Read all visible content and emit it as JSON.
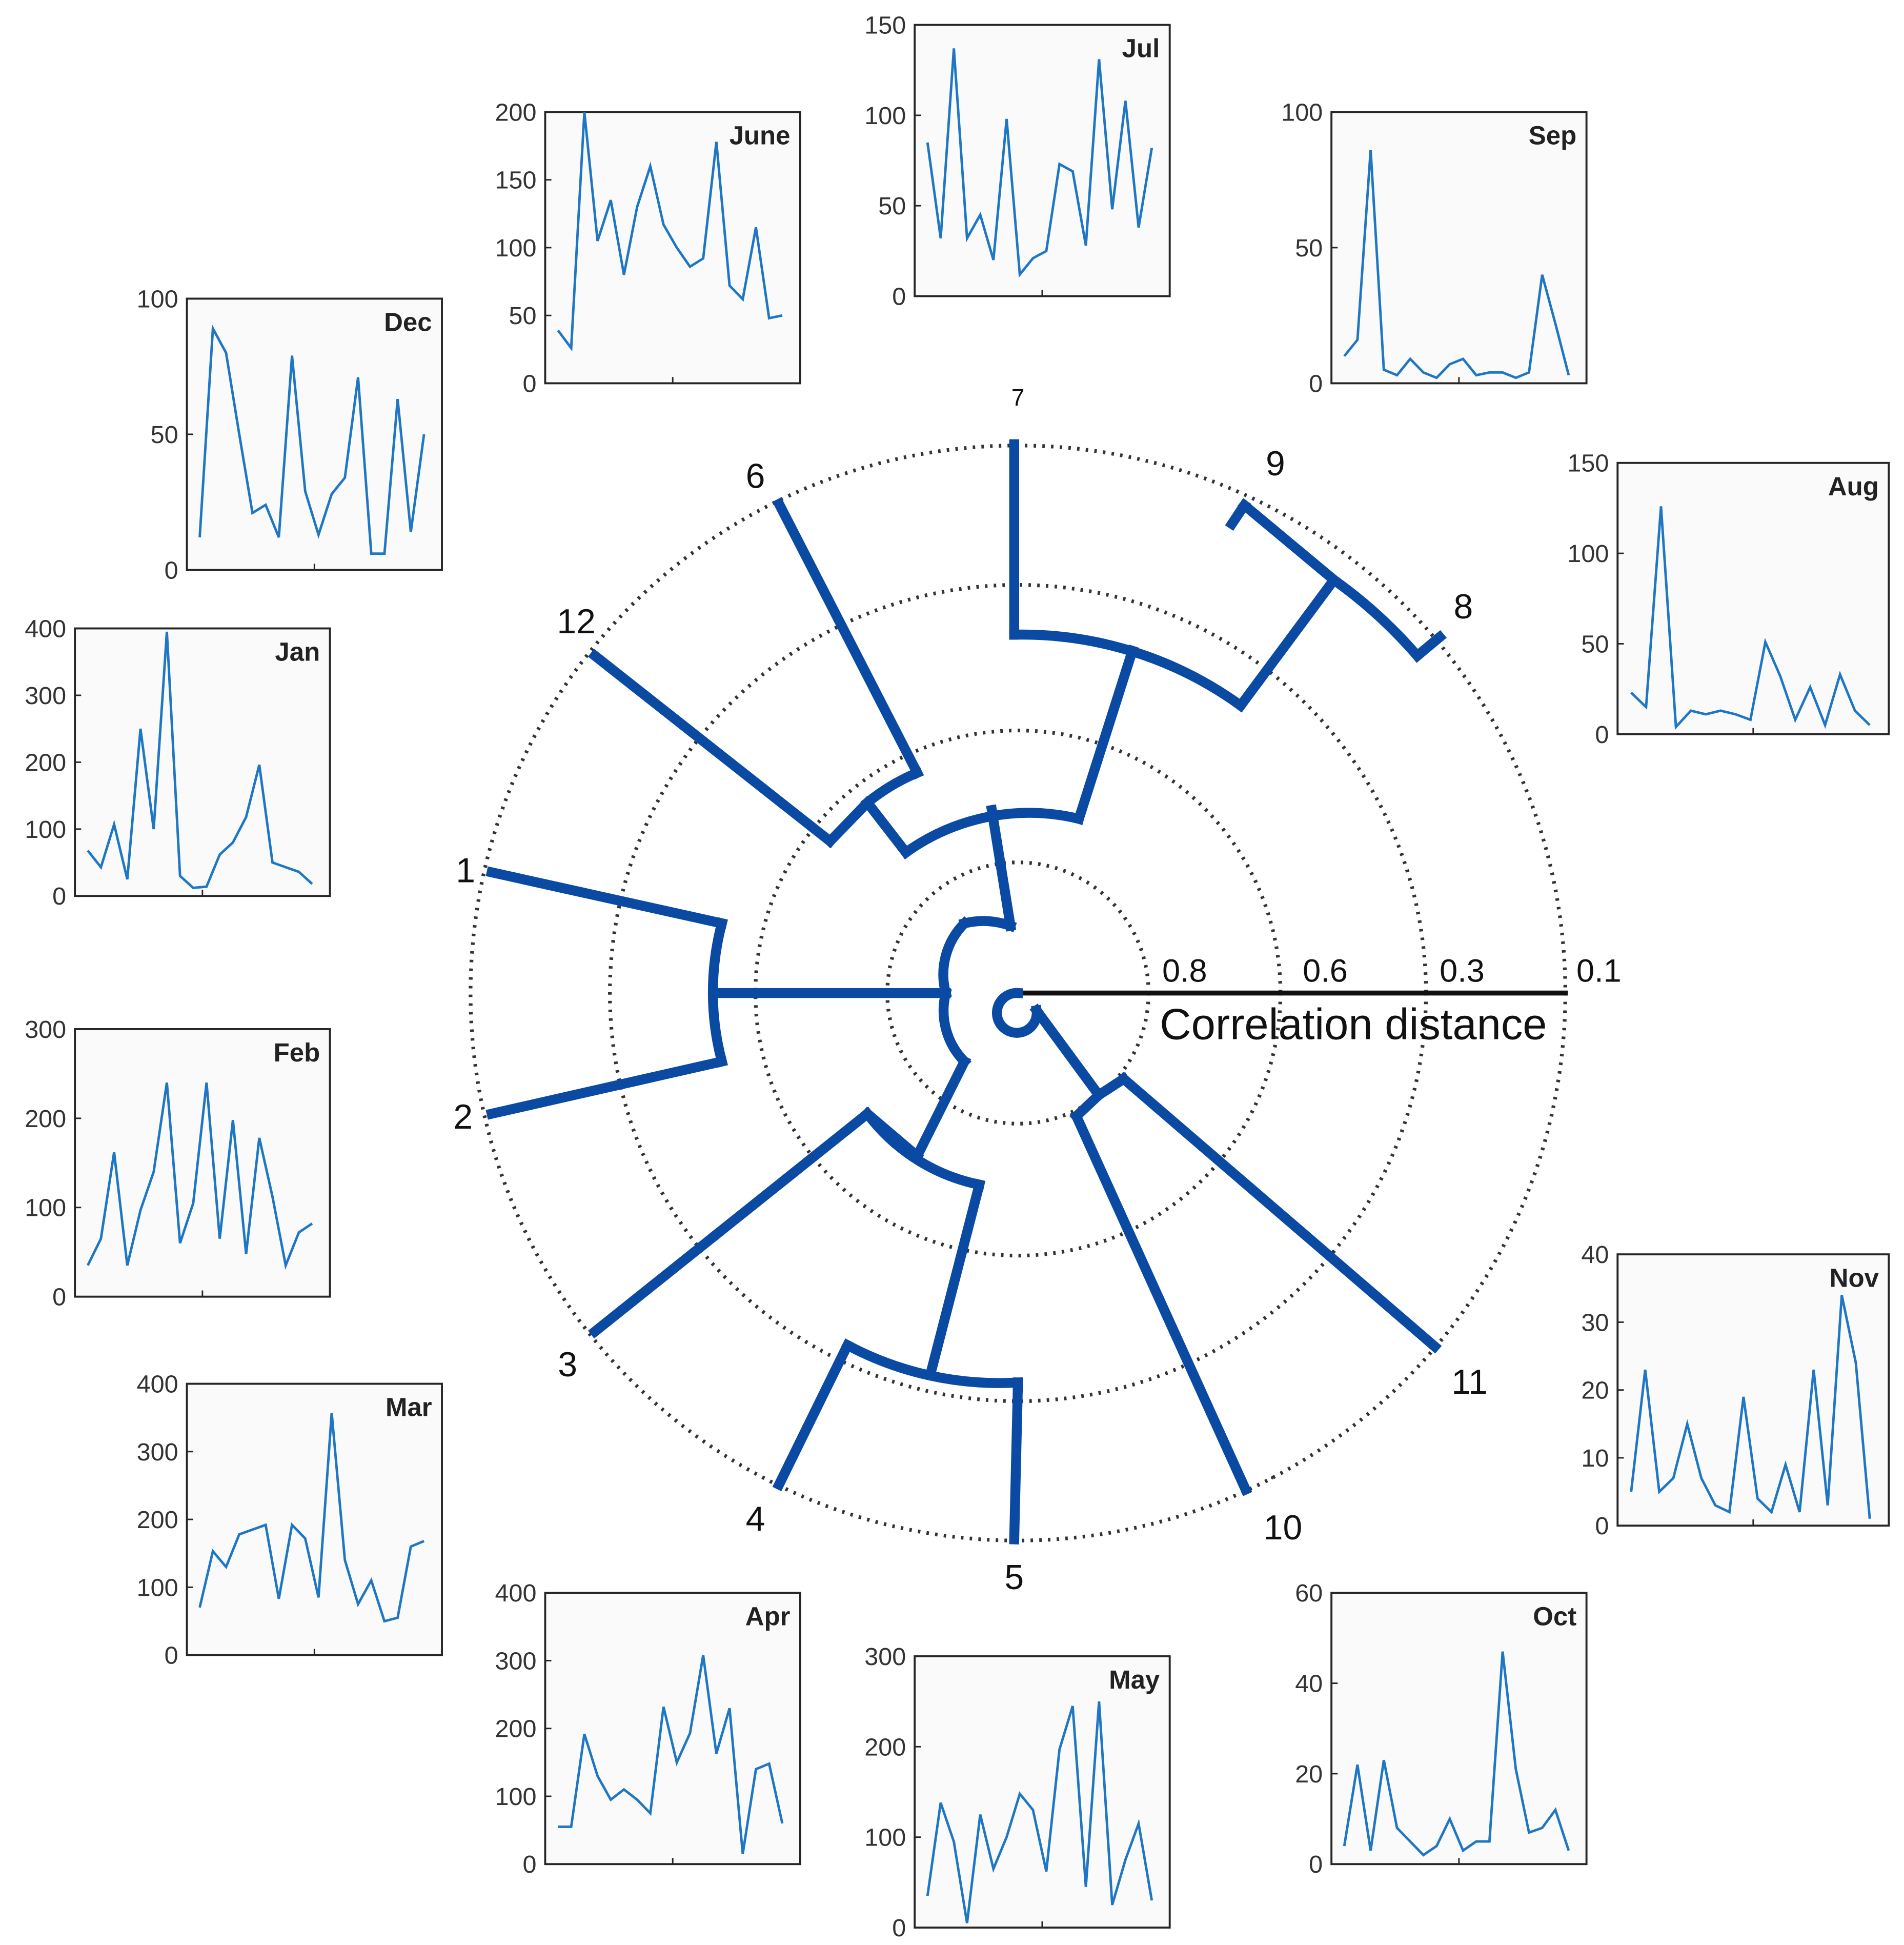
{
  "dendrogram": {
    "leaf_labels": [
      "1",
      "2",
      "3",
      "4",
      "5",
      "10",
      "11",
      "8",
      "9",
      "6",
      "12"
    ],
    "leaf_label_top": "7",
    "axis_label": "Correlation distance",
    "axis_ticks": [
      "0.8",
      "0.6",
      "0.3",
      "0.1"
    ],
    "branch_color": "#0a4aa3"
  },
  "chart_data": [
    {
      "type": "line",
      "title": "Jul",
      "ylim": [
        0,
        150
      ],
      "yticks": [
        "0",
        "50",
        "100",
        "150"
      ],
      "series": [
        {
          "values": [
            85,
            32,
            137,
            32,
            45,
            20,
            98,
            12,
            21,
            25,
            73,
            69,
            28,
            131,
            48,
            108,
            38,
            82
          ]
        }
      ]
    },
    {
      "type": "line",
      "title": "June",
      "ylim": [
        0,
        200
      ],
      "yticks": [
        "0",
        "50",
        "100",
        "150",
        "200"
      ],
      "series": [
        {
          "values": [
            39,
            26,
            200,
            105,
            135,
            80,
            130,
            160,
            117,
            100,
            86,
            92,
            178,
            72,
            62,
            115,
            48,
            50
          ]
        }
      ]
    },
    {
      "type": "line",
      "title": "Sep",
      "ylim": [
        0,
        100
      ],
      "yticks": [
        "0",
        "50",
        "100"
      ],
      "series": [
        {
          "values": [
            10,
            16,
            86,
            5,
            3,
            9,
            4,
            2,
            7,
            9,
            3,
            4,
            4,
            2,
            4,
            40,
            22,
            3
          ]
        }
      ]
    },
    {
      "type": "line",
      "title": "Dec",
      "ylim": [
        0,
        100
      ],
      "yticks": [
        "0",
        "50",
        "100"
      ],
      "series": [
        {
          "values": [
            12,
            89,
            80,
            50,
            21,
            24,
            12,
            79,
            29,
            13,
            28,
            34,
            71,
            6,
            6,
            63,
            14,
            50
          ]
        }
      ]
    },
    {
      "type": "line",
      "title": "Aug",
      "ylim": [
        0,
        150
      ],
      "yticks": [
        "0",
        "50",
        "100",
        "150"
      ],
      "series": [
        {
          "values": [
            23,
            15,
            126,
            4,
            13,
            11,
            13,
            11,
            8,
            51,
            32,
            8,
            26,
            5,
            33,
            13,
            5
          ]
        }
      ]
    },
    {
      "type": "line",
      "title": "Jan",
      "ylim": [
        0,
        400
      ],
      "yticks": [
        "0",
        "100",
        "200",
        "300",
        "400"
      ],
      "series": [
        {
          "values": [
            68,
            43,
            107,
            25,
            250,
            100,
            395,
            30,
            12,
            14,
            62,
            80,
            118,
            196,
            50,
            43,
            36,
            18
          ]
        }
      ]
    },
    {
      "type": "line",
      "title": "Feb",
      "ylim": [
        0,
        300
      ],
      "yticks": [
        "0",
        "100",
        "200",
        "300"
      ],
      "series": [
        {
          "values": [
            35,
            65,
            162,
            35,
            97,
            140,
            240,
            60,
            105,
            240,
            65,
            198,
            48,
            178,
            112,
            35,
            72,
            82
          ]
        }
      ]
    },
    {
      "type": "line",
      "title": "Nov",
      "ylim": [
        0,
        40
      ],
      "yticks": [
        "0",
        "10",
        "20",
        "30",
        "40"
      ],
      "series": [
        {
          "values": [
            5,
            23,
            5,
            7,
            15,
            7,
            3,
            2,
            19,
            4,
            2,
            9,
            2,
            23,
            3,
            34,
            24,
            1
          ]
        }
      ]
    },
    {
      "type": "line",
      "title": "Mar",
      "ylim": [
        0,
        400
      ],
      "yticks": [
        "0",
        "100",
        "200",
        "300",
        "400"
      ],
      "series": [
        {
          "values": [
            70,
            153,
            130,
            178,
            185,
            192,
            83,
            192,
            172,
            85,
            357,
            140,
            75,
            110,
            50,
            55,
            160,
            168
          ]
        }
      ]
    },
    {
      "type": "line",
      "title": "Apr",
      "ylim": [
        0,
        400
      ],
      "yticks": [
        "0",
        "100",
        "200",
        "300",
        "400"
      ],
      "series": [
        {
          "values": [
            55,
            55,
            192,
            130,
            95,
            110,
            95,
            75,
            232,
            150,
            193,
            308,
            163,
            230,
            15,
            140,
            148,
            60
          ]
        }
      ]
    },
    {
      "type": "line",
      "title": "May",
      "ylim": [
        0,
        300
      ],
      "yticks": [
        "0",
        "100",
        "200",
        "300"
      ],
      "series": [
        {
          "values": [
            35,
            138,
            95,
            5,
            125,
            65,
            100,
            148,
            130,
            62,
            197,
            245,
            45,
            250,
            25,
            75,
            115,
            30
          ]
        }
      ]
    },
    {
      "type": "line",
      "title": "Oct",
      "ylim": [
        0,
        60
      ],
      "yticks": [
        "0",
        "20",
        "40",
        "60"
      ],
      "series": [
        {
          "values": [
            4,
            22,
            3,
            23,
            8,
            5,
            2,
            4,
            10,
            3,
            5,
            5,
            47,
            21,
            7,
            8,
            12,
            3
          ]
        }
      ]
    }
  ]
}
